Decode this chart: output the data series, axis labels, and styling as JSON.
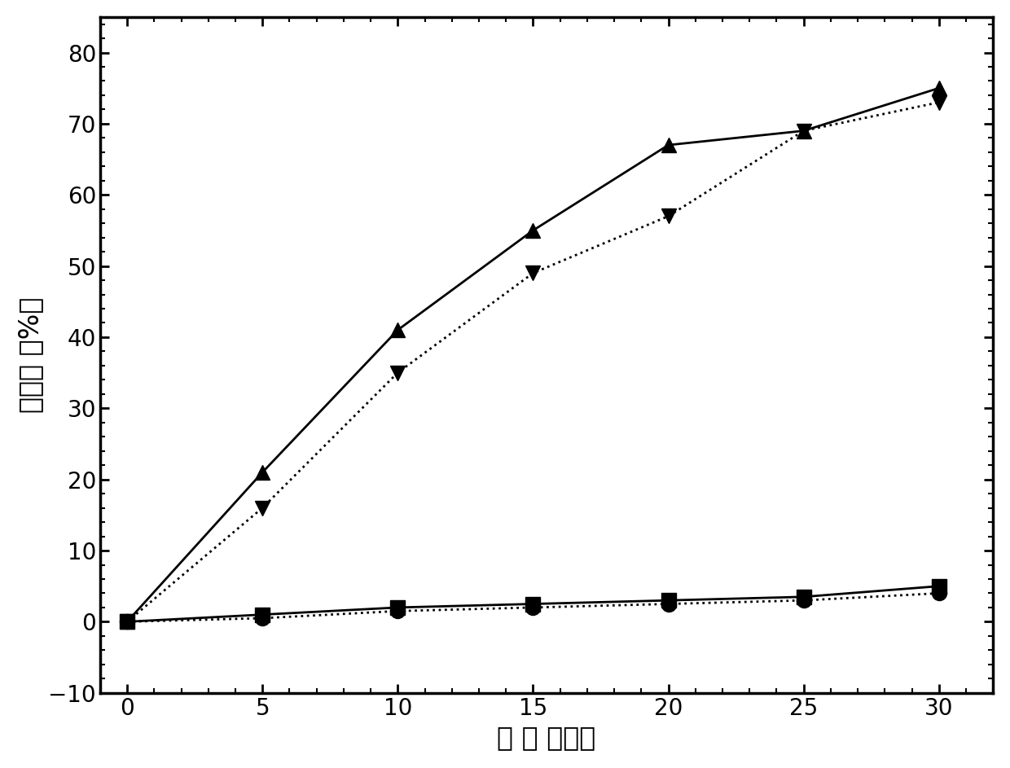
{
  "x": [
    0,
    5,
    10,
    15,
    20,
    25,
    30
  ],
  "series1_y": [
    0,
    21,
    41,
    55,
    67,
    69,
    75
  ],
  "series2_y": [
    0,
    16,
    35,
    49,
    57,
    69,
    73
  ],
  "series3_y": [
    0,
    1,
    2,
    2.5,
    3,
    3.5,
    5
  ],
  "series4_y": [
    0,
    0.5,
    1.5,
    2,
    2.5,
    3,
    4
  ],
  "series1_color": "#000000",
  "series2_color": "#000000",
  "series3_color": "#000000",
  "series4_color": "#000000",
  "series1_linestyle": "solid",
  "series2_linestyle": "dotted",
  "series3_linestyle": "solid",
  "series4_linestyle": "dotted",
  "series1_marker": "^",
  "series2_marker": "v",
  "series3_marker": "s",
  "series4_marker": "o",
  "xlabel": "时 间 （天）",
  "ylabel": "降解率 （%）",
  "xlim": [
    -1,
    32
  ],
  "ylim": [
    -10,
    85
  ],
  "xticks": [
    0,
    5,
    10,
    15,
    20,
    25,
    30
  ],
  "yticks": [
    -10,
    0,
    10,
    20,
    30,
    40,
    50,
    60,
    70,
    80
  ],
  "marker_size": 13,
  "linewidth": 2.0,
  "background_color": "#ffffff",
  "xlabel_fontsize": 24,
  "ylabel_fontsize": 24,
  "tick_fontsize": 20,
  "spine_linewidth": 2.5
}
